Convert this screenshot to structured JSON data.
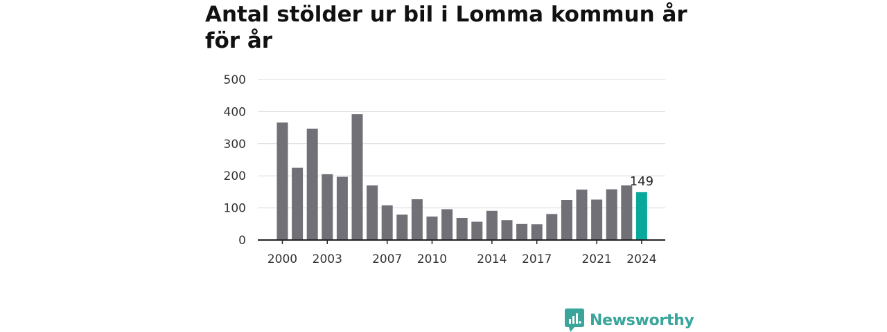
{
  "chart_data": {
    "type": "bar",
    "title": "Antal stölder ur bil i Lomma kommun år för år",
    "categories": [
      "2000",
      "2001",
      "2002",
      "2003",
      "2004",
      "2005",
      "2006",
      "2007",
      "2008",
      "2009",
      "2010",
      "2011",
      "2012",
      "2013",
      "2014",
      "2015",
      "2016",
      "2017",
      "2018",
      "2019",
      "2020",
      "2021",
      "2022",
      "2023",
      "2024"
    ],
    "values": [
      366,
      225,
      347,
      205,
      197,
      392,
      170,
      108,
      79,
      127,
      73,
      96,
      69,
      57,
      91,
      62,
      50,
      49,
      81,
      125,
      157,
      126,
      158,
      170,
      149
    ],
    "x_tick_labels": [
      "2000",
      "2003",
      "2007",
      "2010",
      "2014",
      "2017",
      "2021",
      "2024"
    ],
    "y_ticks": [
      0,
      100,
      200,
      300,
      400,
      500
    ],
    "ylim": [
      0,
      500
    ],
    "grid": true,
    "highlight": {
      "category": "2024",
      "label": "149"
    },
    "colors": {
      "bar": "#717077",
      "highlight": "#0aa89b",
      "grid": "#d9d9d9",
      "axis": "#222222"
    }
  },
  "branding": {
    "name": "Newsworthy",
    "color": "#3aa59a"
  }
}
